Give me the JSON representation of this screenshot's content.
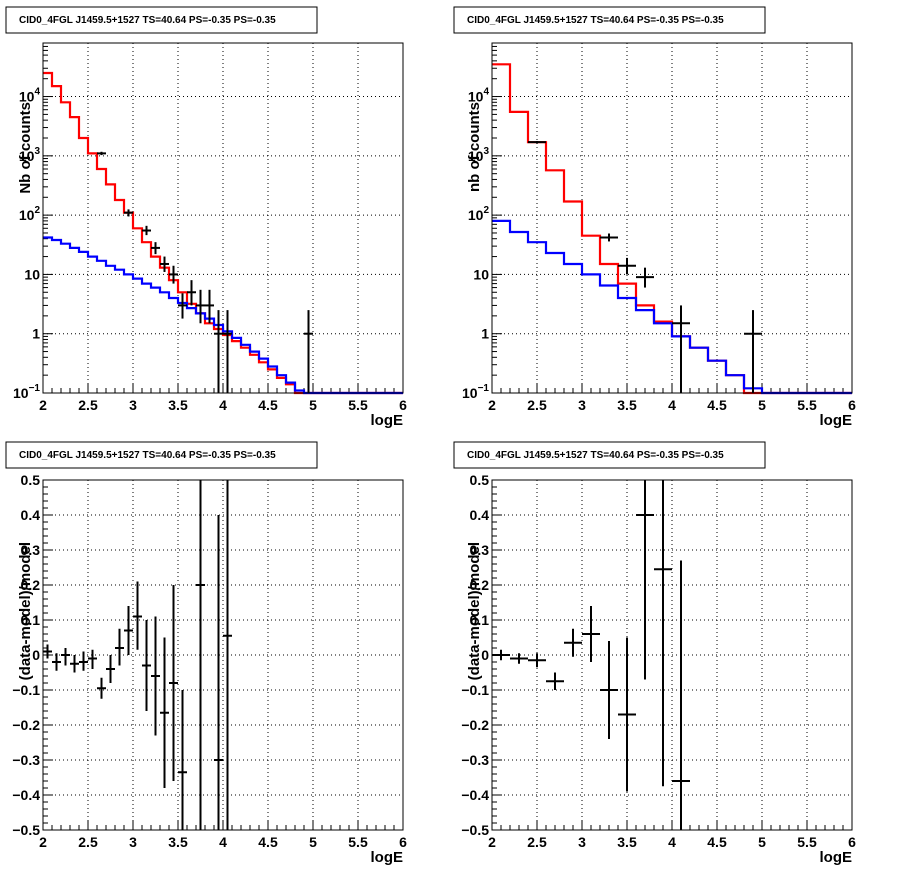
{
  "chart_data": [
    {
      "id": "tl",
      "type": "line",
      "title": "CID0_4FGL J1459.5+1527 TS=40.64 PS=-0.35 PS=-0.35",
      "xlabel": "logE",
      "ylabel": "Nb of counts",
      "xlim": [
        2,
        6
      ],
      "ylim": [
        0.1,
        80000
      ],
      "yscale": "log",
      "grid": true,
      "xticks": [
        "2",
        "2.5",
        "3",
        "3.5",
        "4",
        "4.5",
        "5",
        "5.5",
        "6"
      ],
      "yticks": [
        {
          "base": "10",
          "exp": "4",
          "value": 10000
        },
        {
          "base": "10",
          "exp": "3",
          "value": 1000
        },
        {
          "base": "10",
          "exp": "2",
          "value": 100
        },
        {
          "base": "10",
          "exp": "",
          "value": 10
        },
        {
          "base": "1",
          "exp": "",
          "value": 1
        },
        {
          "base": "10",
          "exp": "−1",
          "value": 0.1
        }
      ],
      "series": [
        {
          "color": "#ff0000",
          "kind": "step",
          "edges": [
            2.0,
            2.1,
            2.2,
            2.3,
            2.4,
            2.5,
            2.6,
            2.7,
            2.8,
            2.9,
            3.0,
            3.1,
            3.2,
            3.3,
            3.4,
            3.5,
            3.6,
            3.7,
            3.8,
            3.9,
            4.0,
            4.1,
            4.2,
            4.3,
            4.4,
            4.5,
            4.6,
            4.7,
            4.8,
            4.9,
            5.0,
            5.1,
            5.2,
            5.3,
            5.4,
            5.5,
            5.6,
            5.7,
            5.8,
            5.9,
            6.0
          ],
          "values": [
            25000,
            15000,
            8000,
            4500,
            2000,
            1100,
            600,
            330,
            180,
            110,
            60,
            35,
            20,
            13,
            8,
            5,
            3.2,
            2.2,
            1.5,
            1.2,
            0.95,
            0.75,
            0.58,
            0.44,
            0.33,
            0.25,
            0.18,
            0.14,
            0.1,
            0.1,
            0.1,
            0.1,
            0.1,
            0.1,
            0.1,
            0.1,
            0.1,
            0.1,
            0.1,
            0.1
          ]
        },
        {
          "color": "#0000ff",
          "kind": "step",
          "edges": [
            2.0,
            2.1,
            2.2,
            2.3,
            2.4,
            2.5,
            2.6,
            2.7,
            2.8,
            2.9,
            3.0,
            3.1,
            3.2,
            3.3,
            3.4,
            3.5,
            3.6,
            3.7,
            3.8,
            3.9,
            4.0,
            4.1,
            4.2,
            4.3,
            4.4,
            4.5,
            4.6,
            4.7,
            4.8,
            4.9,
            5.0,
            5.1,
            5.2,
            5.3,
            5.4,
            5.5,
            5.6,
            5.7,
            5.8,
            5.9,
            6.0
          ],
          "values": [
            42,
            38,
            33,
            28,
            24,
            20,
            17,
            14,
            12,
            10,
            8.5,
            7,
            6,
            5,
            4,
            3.3,
            2.7,
            2.2,
            1.8,
            1.4,
            1.1,
            0.85,
            0.65,
            0.5,
            0.38,
            0.28,
            0.2,
            0.15,
            0.11,
            0.1,
            0.1,
            0.1,
            0.1,
            0.1,
            0.1,
            0.1,
            0.1,
            0.1,
            0.1,
            0.1
          ]
        }
      ],
      "points": [
        {
          "x": 2.65,
          "y": 1100,
          "xerr": 0.05,
          "ylo": 1030,
          "yhi": 1170
        },
        {
          "x": 2.95,
          "y": 110,
          "xerr": 0.05,
          "ylo": 95,
          "yhi": 125
        },
        {
          "x": 3.15,
          "y": 55,
          "xerr": 0.05,
          "ylo": 46,
          "yhi": 66
        },
        {
          "x": 3.25,
          "y": 28,
          "xerr": 0.05,
          "ylo": 22,
          "yhi": 35
        },
        {
          "x": 3.35,
          "y": 15,
          "xerr": 0.05,
          "ylo": 11,
          "yhi": 20
        },
        {
          "x": 3.45,
          "y": 10,
          "xerr": 0.05,
          "ylo": 7,
          "yhi": 14
        },
        {
          "x": 3.55,
          "y": 3,
          "xerr": 0.05,
          "ylo": 1.8,
          "yhi": 4.8
        },
        {
          "x": 3.65,
          "y": 5,
          "xerr": 0.05,
          "ylo": 3,
          "yhi": 8
        },
        {
          "x": 3.75,
          "y": 3,
          "xerr": 0.05,
          "ylo": 1.5,
          "yhi": 5.5
        },
        {
          "x": 3.85,
          "y": 3,
          "xerr": 0.05,
          "ylo": 1.5,
          "yhi": 5.5
        },
        {
          "x": 3.95,
          "y": 1,
          "xerr": 0.05,
          "ylo": 0.1,
          "yhi": 2.5
        },
        {
          "x": 4.05,
          "y": 1,
          "xerr": 0.05,
          "ylo": 0.1,
          "yhi": 2.5
        },
        {
          "x": 4.95,
          "y": 1,
          "xerr": 0.05,
          "ylo": 0.1,
          "yhi": 2.5
        }
      ]
    },
    {
      "id": "tr",
      "type": "line",
      "title": "CID0_4FGL J1459.5+1527 TS=40.64 PS=-0.35 PS=-0.35",
      "xlabel": "logE",
      "ylabel": "nb of counts",
      "xlim": [
        2,
        6
      ],
      "ylim": [
        0.1,
        80000
      ],
      "yscale": "log",
      "grid": true,
      "xticks": [
        "2",
        "2.5",
        "3",
        "3.5",
        "4",
        "4.5",
        "5",
        "5.5",
        "6"
      ],
      "yticks": [
        {
          "base": "10",
          "exp": "4",
          "value": 10000
        },
        {
          "base": "10",
          "exp": "3",
          "value": 1000
        },
        {
          "base": "10",
          "exp": "2",
          "value": 100
        },
        {
          "base": "10",
          "exp": "",
          "value": 10
        },
        {
          "base": "1",
          "exp": "",
          "value": 1
        },
        {
          "base": "10",
          "exp": "−1",
          "value": 0.1
        }
      ],
      "series": [
        {
          "color": "#ff0000",
          "kind": "step",
          "edges": [
            2.0,
            2.2,
            2.4,
            2.6,
            2.8,
            3.0,
            3.2,
            3.4,
            3.6,
            3.8,
            4.0,
            4.2,
            4.4,
            4.6,
            4.8,
            5.0,
            5.2,
            5.4,
            5.6,
            5.8,
            6.0
          ],
          "values": [
            35000,
            5500,
            1700,
            570,
            170,
            45,
            15,
            7,
            3,
            1.6,
            0.9,
            0.58,
            0.35,
            0.2,
            0.1,
            0.1,
            0.1,
            0.1,
            0.1,
            0.1
          ]
        },
        {
          "color": "#0000ff",
          "kind": "step",
          "edges": [
            2.0,
            2.2,
            2.4,
            2.6,
            2.8,
            3.0,
            3.2,
            3.4,
            3.6,
            3.8,
            4.0,
            4.2,
            4.4,
            4.6,
            4.8,
            5.0,
            5.2,
            5.4,
            5.6,
            5.8,
            6.0
          ],
          "values": [
            80,
            52,
            35,
            23,
            15,
            10,
            6.5,
            4,
            2.5,
            1.5,
            0.9,
            0.58,
            0.35,
            0.2,
            0.12,
            0.1,
            0.1,
            0.1,
            0.1,
            0.1
          ]
        }
      ],
      "points": [
        {
          "x": 2.5,
          "y": 1700,
          "xerr": 0.1,
          "ylo": 1620,
          "yhi": 1780
        },
        {
          "x": 3.3,
          "y": 42,
          "xerr": 0.1,
          "ylo": 36,
          "yhi": 49
        },
        {
          "x": 3.5,
          "y": 14,
          "xerr": 0.1,
          "ylo": 10,
          "yhi": 19
        },
        {
          "x": 3.7,
          "y": 9,
          "xerr": 0.1,
          "ylo": 6,
          "yhi": 13
        },
        {
          "x": 4.1,
          "y": 1.5,
          "xerr": 0.1,
          "ylo": 0.1,
          "yhi": 3
        },
        {
          "x": 4.9,
          "y": 1,
          "xerr": 0.1,
          "ylo": 0.1,
          "yhi": 2.5
        }
      ]
    },
    {
      "id": "bl",
      "type": "scatter",
      "title": "CID0_4FGL J1459.5+1527 TS=40.64 PS=-0.35 PS=-0.35",
      "xlabel": "logE",
      "ylabel": "(data-model)/model",
      "xlim": [
        2,
        6
      ],
      "ylim": [
        -0.5,
        0.5
      ],
      "yscale": "linear",
      "grid": true,
      "xticks": [
        "2",
        "2.5",
        "3",
        "3.5",
        "4",
        "4.5",
        "5",
        "5.5",
        "6"
      ],
      "yticks": [
        "0.5",
        "0.4",
        "0.3",
        "0.2",
        "0.1",
        "0",
        "−0.1",
        "−0.2",
        "−0.3",
        "−0.4",
        "−0.5"
      ],
      "points": [
        {
          "x": 2.05,
          "y": 0.01,
          "xerr": 0.05,
          "ylo": -0.01,
          "yhi": 0.03
        },
        {
          "x": 2.15,
          "y": -0.02,
          "xerr": 0.05,
          "ylo": -0.045,
          "yhi": 0.005
        },
        {
          "x": 2.25,
          "y": 0.0,
          "xerr": 0.05,
          "ylo": -0.03,
          "yhi": 0.02
        },
        {
          "x": 2.35,
          "y": -0.025,
          "xerr": 0.05,
          "ylo": -0.05,
          "yhi": 0.0
        },
        {
          "x": 2.45,
          "y": -0.02,
          "xerr": 0.05,
          "ylo": -0.045,
          "yhi": 0.01
        },
        {
          "x": 2.55,
          "y": -0.01,
          "xerr": 0.05,
          "ylo": -0.04,
          "yhi": 0.015
        },
        {
          "x": 2.65,
          "y": -0.095,
          "xerr": 0.05,
          "ylo": -0.125,
          "yhi": -0.065
        },
        {
          "x": 2.75,
          "y": -0.04,
          "xerr": 0.05,
          "ylo": -0.08,
          "yhi": 0.0
        },
        {
          "x": 2.85,
          "y": 0.02,
          "xerr": 0.05,
          "ylo": -0.03,
          "yhi": 0.075
        },
        {
          "x": 2.95,
          "y": 0.07,
          "xerr": 0.05,
          "ylo": 0.0,
          "yhi": 0.14
        },
        {
          "x": 3.05,
          "y": 0.11,
          "xerr": 0.05,
          "ylo": 0.015,
          "yhi": 0.21
        },
        {
          "x": 3.15,
          "y": -0.03,
          "xerr": 0.05,
          "ylo": -0.16,
          "yhi": 0.1
        },
        {
          "x": 3.25,
          "y": -0.06,
          "xerr": 0.05,
          "ylo": -0.23,
          "yhi": 0.11
        },
        {
          "x": 3.35,
          "y": -0.165,
          "xerr": 0.05,
          "ylo": -0.38,
          "yhi": 0.05
        },
        {
          "x": 3.45,
          "y": -0.08,
          "xerr": 0.05,
          "ylo": -0.36,
          "yhi": 0.2
        },
        {
          "x": 3.55,
          "y": -0.335,
          "xerr": 0.05,
          "ylo": -0.5,
          "yhi": -0.1
        },
        {
          "x": 3.75,
          "y": 0.2,
          "xerr": 0.05,
          "ylo": -0.5,
          "yhi": 0.5
        },
        {
          "x": 3.95,
          "y": -0.3,
          "xerr": 0.05,
          "ylo": -0.5,
          "yhi": 0.4
        },
        {
          "x": 4.05,
          "y": 0.055,
          "xerr": 0.05,
          "ylo": -0.5,
          "yhi": 0.5
        }
      ]
    },
    {
      "id": "br",
      "type": "scatter",
      "title": "CID0_4FGL J1459.5+1527 TS=40.64 PS=-0.35 PS=-0.35",
      "xlabel": "logE",
      "ylabel": "(data-model)/model",
      "xlim": [
        2,
        6
      ],
      "ylim": [
        -0.5,
        0.5
      ],
      "yscale": "linear",
      "grid": true,
      "xticks": [
        "2",
        "2.5",
        "3",
        "3.5",
        "4",
        "4.5",
        "5",
        "5.5",
        "6"
      ],
      "yticks": [
        "0.5",
        "0.4",
        "0.3",
        "0.2",
        "0.1",
        "0",
        "−0.1",
        "−0.2",
        "−0.3",
        "−0.4",
        "−0.5"
      ],
      "points": [
        {
          "x": 2.1,
          "y": 0.0,
          "xerr": 0.1,
          "ylo": -0.015,
          "yhi": 0.015
        },
        {
          "x": 2.3,
          "y": -0.01,
          "xerr": 0.1,
          "ylo": -0.025,
          "yhi": 0.005
        },
        {
          "x": 2.5,
          "y": -0.015,
          "xerr": 0.1,
          "ylo": -0.035,
          "yhi": 0.005
        },
        {
          "x": 2.7,
          "y": -0.075,
          "xerr": 0.1,
          "ylo": -0.1,
          "yhi": -0.05
        },
        {
          "x": 2.9,
          "y": 0.035,
          "xerr": 0.1,
          "ylo": -0.005,
          "yhi": 0.075
        },
        {
          "x": 3.1,
          "y": 0.06,
          "xerr": 0.1,
          "ylo": -0.02,
          "yhi": 0.14
        },
        {
          "x": 3.3,
          "y": -0.1,
          "xerr": 0.1,
          "ylo": -0.24,
          "yhi": 0.04
        },
        {
          "x": 3.5,
          "y": -0.17,
          "xerr": 0.1,
          "ylo": -0.39,
          "yhi": 0.05
        },
        {
          "x": 3.7,
          "y": 0.4,
          "xerr": 0.1,
          "ylo": -0.07,
          "yhi": 0.5
        },
        {
          "x": 3.9,
          "y": 0.245,
          "xerr": 0.1,
          "ylo": -0.375,
          "yhi": 0.5
        },
        {
          "x": 4.1,
          "y": -0.36,
          "xerr": 0.1,
          "ylo": -0.5,
          "yhi": 0.27
        }
      ]
    }
  ]
}
